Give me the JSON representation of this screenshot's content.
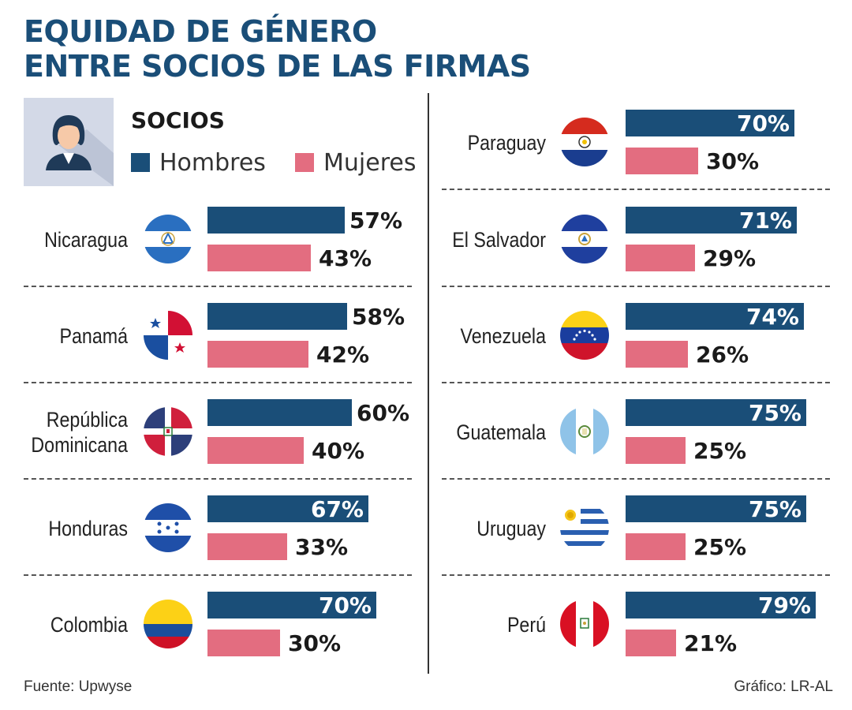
{
  "title_line1": "EQUIDAD DE GÉNERO",
  "title_line2": "ENTRE SOCIOS DE LAS FIRMAS",
  "legend": {
    "title": "SOCIOS",
    "items": [
      {
        "label": "Hombres",
        "color": "#1a4e78"
      },
      {
        "label": "Mujeres",
        "color": "#e36d80"
      }
    ]
  },
  "footer": {
    "source": "Fuente: Upwyse",
    "credit": "Gráfico: LR-AL"
  },
  "chart_data": {
    "type": "bar",
    "series": [
      {
        "name": "Hombres",
        "color": "#1a4e78"
      },
      {
        "name": "Mujeres",
        "color": "#e36d80"
      }
    ],
    "xlim": [
      0,
      100
    ],
    "countries": [
      {
        "name": "Nicaragua",
        "flag": "flag-nicaragua",
        "hombres": 57,
        "mujeres": 43,
        "hombres_label": "57%",
        "mujeres_label": "43%"
      },
      {
        "name": "Panamá",
        "flag": "flag-panama",
        "hombres": 58,
        "mujeres": 42,
        "hombres_label": "58%",
        "mujeres_label": "42%"
      },
      {
        "name": "República Dominicana",
        "name_lines": [
          "República",
          "Dominicana"
        ],
        "flag": "flag-dominican-republic",
        "hombres": 60,
        "mujeres": 40,
        "hombres_label": "60%",
        "mujeres_label": "40%"
      },
      {
        "name": "Honduras",
        "flag": "flag-honduras",
        "hombres": 67,
        "mujeres": 33,
        "hombres_label": "67%",
        "mujeres_label": "33%"
      },
      {
        "name": "Colombia",
        "flag": "flag-colombia",
        "hombres": 70,
        "mujeres": 30,
        "hombres_label": "70%",
        "mujeres_label": "30%"
      },
      {
        "name": "Paraguay",
        "flag": "flag-paraguay",
        "hombres": 70,
        "mujeres": 30,
        "hombres_label": "70%",
        "mujeres_label": "30%"
      },
      {
        "name": "El Salvador",
        "flag": "flag-el-salvador",
        "hombres": 71,
        "mujeres": 29,
        "hombres_label": "71%",
        "mujeres_label": "29%"
      },
      {
        "name": "Venezuela",
        "flag": "flag-venezuela",
        "hombres": 74,
        "mujeres": 26,
        "hombres_label": "74%",
        "mujeres_label": "26%"
      },
      {
        "name": "Guatemala",
        "flag": "flag-guatemala",
        "hombres": 75,
        "mujeres": 25,
        "hombres_label": "75%",
        "mujeres_label": "25%"
      },
      {
        "name": "Uruguay",
        "flag": "flag-uruguay",
        "hombres": 75,
        "mujeres": 25,
        "hombres_label": "75%",
        "mujeres_label": "25%"
      },
      {
        "name": "Perú",
        "flag": "flag-peru",
        "hombres": 79,
        "mujeres": 21,
        "hombres_label": "79%",
        "mujeres_label": "21%"
      }
    ]
  }
}
